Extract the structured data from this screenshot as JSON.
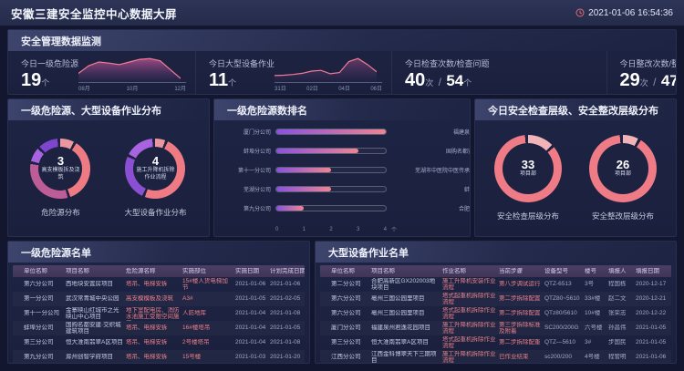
{
  "header": {
    "title": "安徽三建安全监控中心数据大屏",
    "timestamp": "2021-01-06 16:54:36"
  },
  "colors": {
    "accent_salmon": "#ee7a84",
    "accent_purple": "#8a50e0",
    "panel_bg": "#1c2240",
    "red_text": "#e8808a"
  },
  "stats_panel": {
    "title": "安全管理数据监测",
    "stats": [
      {
        "label": "今日一级危险源",
        "value": "19",
        "unit": "个",
        "chart": {
          "type": "area",
          "x_labels": [
            "08月",
            "10月",
            "12月"
          ],
          "points": [
            2.5,
            4.5,
            5.5,
            5.2,
            4.8,
            5.5,
            6.2,
            6.4,
            5.8,
            3.5,
            1.2
          ]
        }
      },
      {
        "label": "今日大型设备作业",
        "value": "11",
        "unit": "个",
        "chart": {
          "type": "line",
          "x_labels": [
            "31日",
            "02日",
            "04日",
            "06日"
          ],
          "points": [
            2,
            2.1,
            2.3,
            2.6,
            3.2,
            3.4,
            2.5,
            2.8,
            5.8,
            6.6,
            5,
            3
          ]
        }
      },
      {
        "label": "今日检查次数/检查问题",
        "value": "40",
        "unit": "次",
        "value2": "54",
        "unit2": "个",
        "chart": null
      },
      {
        "label": "今日整改次数/整改问题",
        "value": "29",
        "unit": "次",
        "value2": "47",
        "unit2": "个",
        "chart": {
          "type": "two-line",
          "x_labels": [
            "30日",
            "01日",
            "03日",
            "05日"
          ],
          "points": [
            4.5,
            5.5,
            5,
            3.8,
            3.2,
            4,
            5,
            6.3,
            5,
            6.2
          ],
          "points2": [
            5.5,
            6.5,
            6,
            4.6,
            4,
            5,
            6,
            7.4,
            6,
            7
          ]
        }
      }
    ]
  },
  "distribution_panel": {
    "title": "一级危险源、大型设备作业分布",
    "donuts": [
      {
        "value": "3",
        "center_label": "高支模板拆及浇筑",
        "caption": "危险源分布",
        "size": 66,
        "segments": [
          [
            "#e8989e",
            9
          ],
          [
            "#ee7a84",
            37
          ],
          [
            "#bd5d98",
            33
          ],
          [
            "#a763e0",
            9
          ],
          [
            "#7e46cf",
            12
          ]
        ]
      },
      {
        "value": "4",
        "center_label": "施工升降机拆除作业流程",
        "caption": "大型设备作业分布",
        "size": 66,
        "segments": [
          [
            "#e8989e",
            7
          ],
          [
            "#ee7a84",
            50
          ],
          [
            "#8b4fd4",
            26
          ],
          [
            "#a763e0",
            17
          ]
        ]
      }
    ]
  },
  "ranking_panel": {
    "title": "一级危险源数排名",
    "axis_labels": [
      "0",
      "1",
      "2",
      "3",
      "4"
    ],
    "axis_unit": "个",
    "max": 4,
    "left": [
      {
        "label": "厦门分公司",
        "value": 4
      },
      {
        "label": "蚌埠分公司",
        "value": 3
      },
      {
        "label": "第十一分公司",
        "value": 2
      },
      {
        "label": "芜湖分公司",
        "value": 2
      },
      {
        "label": "第九分公司",
        "value": 1
      }
    ],
    "right": [
      {
        "label": "福建泉州时代广场二期项目",
        "value": 3
      },
      {
        "label": "国购名都安建·交织城建筑项目",
        "value": 2
      },
      {
        "label": "芜湖市中医院中医传承与创新研究中心项目",
        "value": 2
      },
      {
        "label": "蚌埠义乌国际二期工程",
        "value": 1
      },
      {
        "label": "合肥九里湾高层制造项目",
        "value": 1
      }
    ]
  },
  "inspection_panel": {
    "title": "今日安全检查层级、安全整改层级分布",
    "donuts": [
      {
        "value": "33",
        "center_label": "项目部",
        "caption": "安全检查层级分布",
        "size": 74,
        "segments": [
          [
            "#f0b3b8",
            14
          ],
          [
            "#ee7b85",
            86
          ]
        ]
      },
      {
        "value": "26",
        "center_label": "项目部",
        "caption": "安全整改层级分布",
        "size": 74,
        "segments": [
          [
            "#f0b3b8",
            9
          ],
          [
            "#ee7b85",
            91
          ]
        ]
      }
    ]
  },
  "hazard_table": {
    "title": "一级危险源名单",
    "columns": [
      "",
      "单位名称",
      "项目名称",
      "危险源名称",
      "实施部位",
      "实施日期",
      "计划完成日期"
    ],
    "col_styles": [
      "dot",
      "light",
      "light",
      "red",
      "red",
      "muted",
      "muted"
    ],
    "rows": [
      [
        "",
        "第六分公司",
        "西地块安置房项目",
        "塔吊、电梯安拆",
        "15#楼人货电梯加节",
        "2021-01-06",
        "2021-01-06"
      ],
      [
        "",
        "第一分公司",
        "武汉常青城中央公园",
        "高支模模板及浇筑",
        "A3#",
        "2021-01-05",
        "2021-02-05"
      ],
      [
        "",
        "第十一分公司",
        "金寨映山红城市之光映山中心项目",
        "地下室配电房、消防水池施工受限空间施工",
        "人防地库",
        "2021-01-04",
        "2021-01-08"
      ],
      [
        "",
        "蚌埠分公司",
        "国购名都安建·交织城建筑项目",
        "塔吊、电梯安拆",
        "16#楼塔吊",
        "2021-01-04",
        "2021-01-05"
      ],
      [
        "",
        "第三分公司",
        "恒大淮南翡翠A区项目",
        "塔吊、电梯安拆",
        "2号楼塔吊",
        "2021-01-04",
        "2021-01-08"
      ],
      [
        "",
        "第九分公司",
        "滁州创智学府项目",
        "塔吊、电梯安拆",
        "15号楼",
        "2021-01-03",
        "2021-01-20"
      ]
    ]
  },
  "equipment_table": {
    "title": "大型设备作业名单",
    "columns": [
      "",
      "单位名称",
      "项目名称",
      "作业名称",
      "当前步骤",
      "设备型号",
      "楼号",
      "填报人",
      "填报日期"
    ],
    "col_styles": [
      "dot",
      "light",
      "light",
      "red",
      "red",
      "muted",
      "muted",
      "muted",
      "muted"
    ],
    "rows": [
      [
        "",
        "第二分公司",
        "合肥高新区GX202003地块项目",
        "施工升降机安装作业流程",
        "第八步调试运行",
        "QTZ-6513",
        "3号",
        "程国栋",
        "2020-12-17"
      ],
      [
        "",
        "第六分公司",
        "亳州三国公园里项目",
        "塔式起重机拆除作业流程",
        "第二步拆除配置",
        "QTZ80~5610",
        "33#楼",
        "赵二文",
        "2020-12-21"
      ],
      [
        "",
        "第六分公司",
        "亳州三国公园里项目",
        "塔式起重机拆除作业流程",
        "第二步拆除配置",
        "QTz80/5610",
        "10#楼",
        "张荣志",
        "2020-12-22"
      ],
      [
        "",
        "厦门分公司",
        "福建泉州君逸花园项目",
        "施工升降机拆除作业流程",
        "第三步拆除标准及附着",
        "SC200/200G",
        "六号楼",
        "孙昌伟",
        "2021-01-05"
      ],
      [
        "",
        "第三分公司",
        "恒大淮南翡翠A区项目",
        "塔式起重机拆除作业流程",
        "第二步拆除配重",
        "QTZ—5610",
        "3#",
        "步国民",
        "2021-01-05"
      ],
      [
        "",
        "江西分公司",
        "江西金科博翠天下三期项目",
        "施工升降机拆除作业流程",
        "已作业结束",
        "sc200/200",
        "4号楼",
        "程管明",
        "2021-01-06"
      ]
    ]
  }
}
